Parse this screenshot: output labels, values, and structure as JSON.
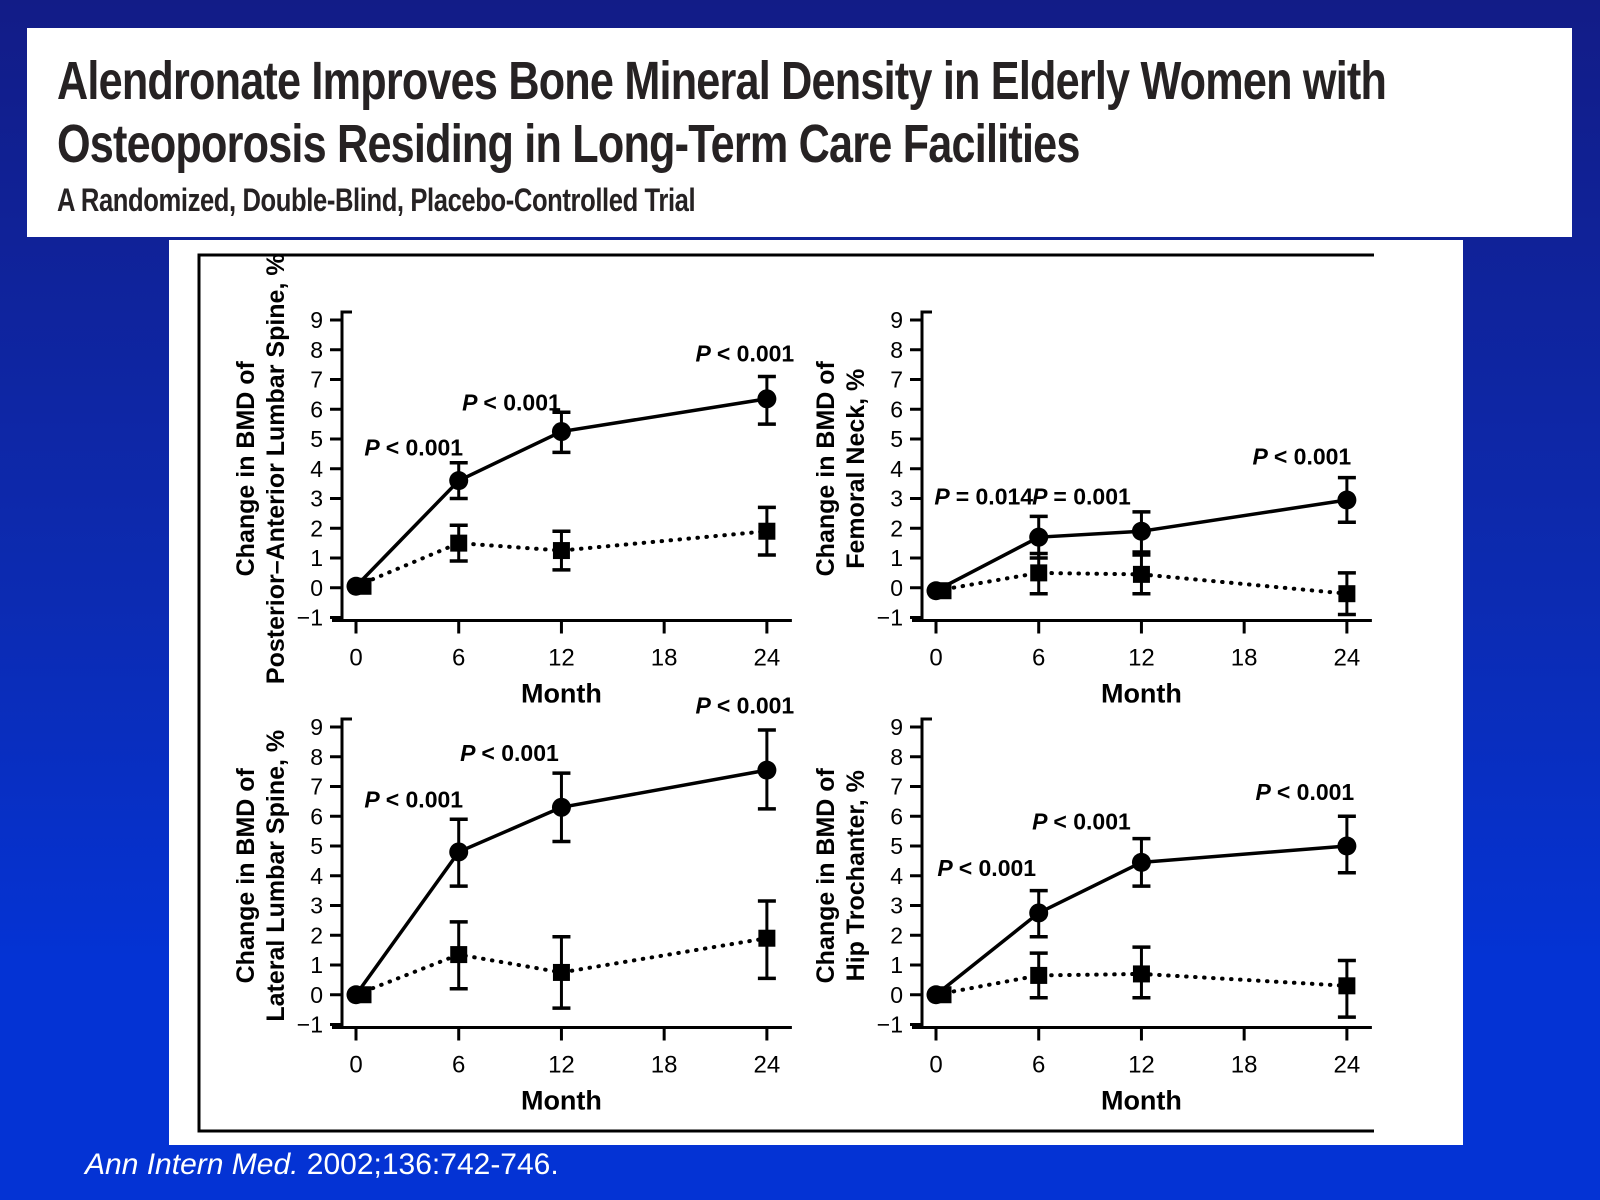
{
  "slide": {
    "title_line1": "Alendronate Improves Bone Mineral Density in Elderly Women with",
    "title_line2": "Osteoporosis Residing in Long-Term Care Facilities",
    "subtitle": "A Randomized, Double-Blind, Placebo-Controlled Trial",
    "citation_source": "Ann Intern Med.",
    "citation_detail": " 2002;136:742-746.",
    "colors": {
      "background_top": "#121c87",
      "background_bottom": "#0433d4",
      "card": "#ffffff",
      "ink": "#000000",
      "title_text": "#262223",
      "citation_text": "#ffffff"
    }
  },
  "chart_data": [
    {
      "type": "line",
      "id": "posterior-anterior-lumbar-spine",
      "ylabel_line1": "Change in BMD of",
      "ylabel_line2": "Posterior–Anterior Lumbar Spine, %",
      "xlabel": "Month",
      "x_ticks": [
        0,
        6,
        12,
        18,
        24
      ],
      "ylim": [
        -1,
        9
      ],
      "series": [
        {
          "name": "alendronate",
          "marker": "circle",
          "line": "solid",
          "x": [
            0,
            6,
            12,
            24
          ],
          "y": [
            0.05,
            3.6,
            5.25,
            6.35
          ],
          "err_low": [
            null,
            3.0,
            4.55,
            5.5
          ],
          "err_high": [
            null,
            4.2,
            5.9,
            7.1
          ]
        },
        {
          "name": "placebo",
          "marker": "square",
          "line": "dotted",
          "x": [
            0,
            6,
            12,
            24
          ],
          "y": [
            0.05,
            1.5,
            1.25,
            1.9
          ],
          "err_low": [
            null,
            0.9,
            0.6,
            1.1
          ],
          "err_high": [
            null,
            2.1,
            1.9,
            2.7
          ]
        }
      ],
      "annotations": [
        {
          "text": "P < 0.001",
          "month": 6,
          "value": 4.45,
          "dx": -45
        },
        {
          "text": "P < 0.001",
          "month": 12,
          "value": 5.95,
          "dx": -50
        },
        {
          "text": "P < 0.001",
          "month": 24,
          "value": 7.6,
          "dx": -22
        }
      ]
    },
    {
      "type": "line",
      "id": "femoral-neck",
      "ylabel_line1": "Change in BMD of",
      "ylabel_line2": "Femoral Neck, %",
      "xlabel": "Month",
      "x_ticks": [
        0,
        6,
        12,
        18,
        24
      ],
      "ylim": [
        -1,
        9
      ],
      "series": [
        {
          "name": "alendronate",
          "marker": "circle",
          "line": "solid",
          "x": [
            0,
            6,
            12,
            24
          ],
          "y": [
            -0.1,
            1.7,
            1.9,
            2.95
          ],
          "err_low": [
            null,
            1.0,
            1.2,
            2.2
          ],
          "err_high": [
            null,
            2.4,
            2.55,
            3.7
          ]
        },
        {
          "name": "placebo",
          "marker": "square",
          "line": "dotted",
          "x": [
            0,
            6,
            12,
            24
          ],
          "y": [
            -0.1,
            0.5,
            0.45,
            -0.2
          ],
          "err_low": [
            null,
            -0.2,
            -0.2,
            -0.9
          ],
          "err_high": [
            null,
            1.15,
            1.1,
            0.5
          ]
        }
      ],
      "annotations": [
        {
          "text": "P = 0.014",
          "month": 6,
          "value": 2.8,
          "dx": -55
        },
        {
          "text": "P = 0.001",
          "month": 12,
          "value": 2.8,
          "dx": -60
        },
        {
          "text": "P < 0.001",
          "month": 24,
          "value": 4.15,
          "dx": -45
        }
      ]
    },
    {
      "type": "line",
      "id": "lateral-lumbar-spine",
      "ylabel_line1": "Change in BMD of",
      "ylabel_line2": "Lateral Lumbar Spine, %",
      "xlabel": "Month",
      "x_ticks": [
        0,
        6,
        12,
        18,
        24
      ],
      "ylim": [
        -1,
        9
      ],
      "series": [
        {
          "name": "alendronate",
          "marker": "circle",
          "line": "solid",
          "x": [
            0,
            6,
            12,
            24
          ],
          "y": [
            0.0,
            4.8,
            6.3,
            7.55
          ],
          "err_low": [
            null,
            3.65,
            5.15,
            6.25
          ],
          "err_high": [
            null,
            5.9,
            7.45,
            8.9
          ]
        },
        {
          "name": "placebo",
          "marker": "square",
          "line": "dotted",
          "x": [
            0,
            6,
            12,
            24
          ],
          "y": [
            0.0,
            1.35,
            0.75,
            1.9
          ],
          "err_low": [
            null,
            0.2,
            -0.45,
            0.55
          ],
          "err_high": [
            null,
            2.45,
            1.95,
            3.15
          ]
        }
      ],
      "annotations": [
        {
          "text": "P < 0.001",
          "month": 6,
          "value": 6.3,
          "dx": -45
        },
        {
          "text": "P < 0.001",
          "month": 12,
          "value": 7.85,
          "dx": -52
        },
        {
          "text": "P < 0.001",
          "month": 24,
          "value": 9.45,
          "dx": -22
        }
      ]
    },
    {
      "type": "line",
      "id": "hip-trochanter",
      "ylabel_line1": "Change in BMD of",
      "ylabel_line2": "Hip Trochanter, %",
      "xlabel": "Month",
      "x_ticks": [
        0,
        6,
        12,
        18,
        24
      ],
      "ylim": [
        -1,
        9
      ],
      "series": [
        {
          "name": "alendronate",
          "marker": "circle",
          "line": "solid",
          "x": [
            0,
            6,
            12,
            24
          ],
          "y": [
            0.0,
            2.75,
            4.45,
            5.0
          ],
          "err_low": [
            null,
            1.95,
            3.65,
            4.1
          ],
          "err_high": [
            null,
            3.5,
            5.25,
            6.0
          ]
        },
        {
          "name": "placebo",
          "marker": "square",
          "line": "dotted",
          "x": [
            0,
            6,
            12,
            24
          ],
          "y": [
            0.0,
            0.65,
            0.7,
            0.3
          ],
          "err_low": [
            null,
            -0.1,
            -0.1,
            -0.75
          ],
          "err_high": [
            null,
            1.4,
            1.6,
            1.15
          ]
        }
      ],
      "annotations": [
        {
          "text": "P < 0.001",
          "month": 6,
          "value": 4.0,
          "dx": -52
        },
        {
          "text": "P < 0.001",
          "month": 12,
          "value": 5.55,
          "dx": -60
        },
        {
          "text": "P < 0.001",
          "month": 24,
          "value": 6.55,
          "dx": -42
        }
      ]
    }
  ]
}
